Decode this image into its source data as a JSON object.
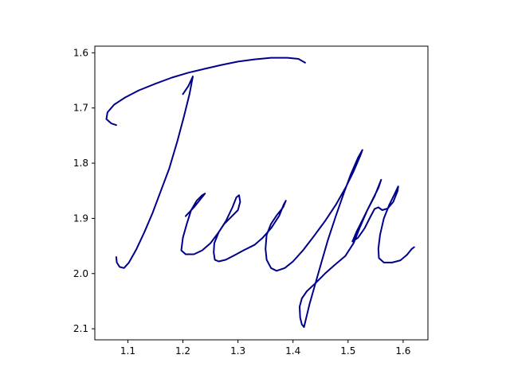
{
  "chart_data": {
    "type": "line",
    "title": "",
    "xlabel": "",
    "ylabel": "",
    "xlim": [
      1.04,
      1.645
    ],
    "ylim": [
      2.12,
      1.588
    ],
    "y_inverted": true,
    "grid": false,
    "xticks": [
      1.1,
      1.2,
      1.3,
      1.4,
      1.5,
      1.6
    ],
    "xtick_labels": [
      "1.1",
      "1.2",
      "1.3",
      "1.4",
      "1.5",
      "1.6"
    ],
    "yticks": [
      1.6,
      1.7,
      1.8,
      1.9,
      2.0,
      2.1
    ],
    "ytick_labels": [
      "1.6",
      "1.7",
      "1.8",
      "1.9",
      "2.0",
      "2.1"
    ],
    "series": [
      {
        "color": "#00008b",
        "points": [
          [
            1.422,
            1.618
          ],
          [
            1.41,
            1.611
          ],
          [
            1.39,
            1.609
          ],
          [
            1.36,
            1.609
          ],
          [
            1.33,
            1.612
          ],
          [
            1.3,
            1.616
          ],
          [
            1.27,
            1.622
          ],
          [
            1.24,
            1.629
          ],
          [
            1.21,
            1.636
          ],
          [
            1.18,
            1.645
          ],
          [
            1.15,
            1.656
          ],
          [
            1.12,
            1.668
          ],
          [
            1.095,
            1.681
          ],
          [
            1.075,
            1.694
          ],
          [
            1.063,
            1.708
          ],
          [
            1.061,
            1.72
          ],
          [
            1.07,
            1.728
          ],
          [
            1.079,
            1.731
          ]
        ]
      },
      {
        "color": "#00008b",
        "points": [
          [
            1.2,
            1.675
          ],
          [
            1.21,
            1.66
          ],
          [
            1.218,
            1.643
          ],
          [
            1.212,
            1.675
          ],
          [
            1.202,
            1.715
          ],
          [
            1.19,
            1.76
          ],
          [
            1.175,
            1.81
          ],
          [
            1.16,
            1.85
          ],
          [
            1.145,
            1.89
          ],
          [
            1.13,
            1.925
          ],
          [
            1.115,
            1.957
          ],
          [
            1.102,
            1.98
          ],
          [
            1.093,
            1.99
          ],
          [
            1.085,
            1.988
          ],
          [
            1.08,
            1.98
          ],
          [
            1.079,
            1.97
          ]
        ]
      },
      {
        "color": "#00008b",
        "points": [
          [
            1.205,
            1.896
          ],
          [
            1.22,
            1.88
          ],
          [
            1.232,
            1.865
          ],
          [
            1.24,
            1.855
          ],
          [
            1.235,
            1.858
          ],
          [
            1.225,
            1.868
          ],
          [
            1.215,
            1.885
          ],
          [
            1.207,
            1.91
          ],
          [
            1.2,
            1.935
          ],
          [
            1.197,
            1.958
          ],
          [
            1.205,
            1.965
          ],
          [
            1.22,
            1.965
          ],
          [
            1.235,
            1.958
          ],
          [
            1.25,
            1.945
          ],
          [
            1.265,
            1.925
          ],
          [
            1.278,
            1.905
          ],
          [
            1.29,
            1.88
          ],
          [
            1.297,
            1.862
          ],
          [
            1.302,
            1.858
          ],
          [
            1.304,
            1.87
          ],
          [
            1.3,
            1.885
          ],
          [
            1.285,
            1.9
          ],
          [
            1.275,
            1.91
          ],
          [
            1.265,
            1.925
          ],
          [
            1.257,
            1.945
          ],
          [
            1.256,
            1.962
          ],
          [
            1.258,
            1.975
          ],
          [
            1.265,
            1.978
          ],
          [
            1.278,
            1.975
          ],
          [
            1.295,
            1.966
          ],
          [
            1.31,
            1.958
          ],
          [
            1.33,
            1.948
          ],
          [
            1.345,
            1.935
          ],
          [
            1.36,
            1.918
          ],
          [
            1.375,
            1.895
          ],
          [
            1.383,
            1.875
          ],
          [
            1.387,
            1.868
          ],
          [
            1.382,
            1.88
          ],
          [
            1.37,
            1.895
          ],
          [
            1.36,
            1.91
          ],
          [
            1.352,
            1.93
          ],
          [
            1.35,
            1.955
          ],
          [
            1.352,
            1.975
          ],
          [
            1.36,
            1.99
          ],
          [
            1.37,
            1.995
          ],
          [
            1.385,
            1.99
          ],
          [
            1.4,
            1.978
          ],
          [
            1.418,
            1.958
          ],
          [
            1.438,
            1.932
          ],
          [
            1.458,
            1.905
          ],
          [
            1.478,
            1.875
          ],
          [
            1.495,
            1.845
          ],
          [
            1.51,
            1.815
          ],
          [
            1.522,
            1.787
          ],
          [
            1.526,
            1.776
          ],
          [
            1.518,
            1.79
          ],
          [
            1.505,
            1.82
          ],
          [
            1.492,
            1.855
          ],
          [
            1.478,
            1.895
          ],
          [
            1.463,
            1.94
          ],
          [
            1.45,
            1.985
          ],
          [
            1.44,
            2.02
          ],
          [
            1.43,
            2.055
          ],
          [
            1.424,
            2.08
          ],
          [
            1.42,
            2.097
          ],
          [
            1.416,
            2.092
          ],
          [
            1.413,
            2.08
          ],
          [
            1.412,
            2.06
          ],
          [
            1.416,
            2.045
          ],
          [
            1.425,
            2.032
          ],
          [
            1.44,
            2.018
          ],
          [
            1.458,
            2.0
          ],
          [
            1.475,
            1.985
          ],
          [
            1.495,
            1.968
          ],
          [
            1.51,
            1.945
          ],
          [
            1.522,
            1.915
          ],
          [
            1.535,
            1.885
          ],
          [
            1.548,
            1.86
          ],
          [
            1.56,
            1.83
          ],
          [
            1.555,
            1.845
          ],
          [
            1.545,
            1.865
          ],
          [
            1.535,
            1.885
          ],
          [
            1.525,
            1.905
          ],
          [
            1.515,
            1.925
          ],
          [
            1.508,
            1.942
          ],
          [
            1.518,
            1.935
          ],
          [
            1.53,
            1.918
          ],
          [
            1.54,
            1.898
          ],
          [
            1.548,
            1.883
          ],
          [
            1.555,
            1.88
          ],
          [
            1.562,
            1.885
          ],
          [
            1.572,
            1.882
          ],
          [
            1.582,
            1.87
          ],
          [
            1.59,
            1.85
          ],
          [
            1.591,
            1.842
          ],
          [
            1.585,
            1.855
          ],
          [
            1.575,
            1.875
          ],
          [
            1.565,
            1.9
          ],
          [
            1.558,
            1.93
          ],
          [
            1.555,
            1.955
          ],
          [
            1.556,
            1.972
          ],
          [
            1.565,
            1.98
          ],
          [
            1.58,
            1.98
          ],
          [
            1.595,
            1.976
          ],
          [
            1.607,
            1.966
          ],
          [
            1.615,
            1.956
          ],
          [
            1.62,
            1.952
          ]
        ]
      }
    ]
  }
}
